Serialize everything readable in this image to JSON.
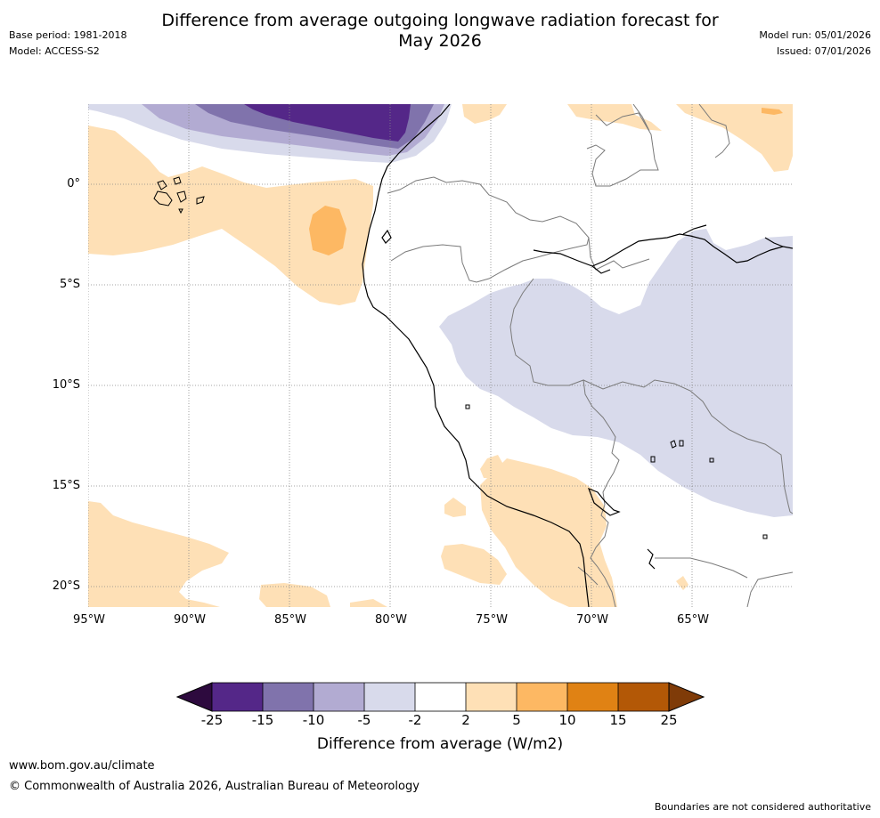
{
  "header": {
    "title_line1": "Difference from average outgoing longwave radiation forecast for",
    "title_line2": "May 2026",
    "base_period": "Base period: 1981-2018",
    "model": "Model: ACCESS-S2",
    "model_run": "Model run: 05/01/2026",
    "issued": "Issued: 07/01/2026"
  },
  "map": {
    "lat_labels": [
      "0°",
      "5°S",
      "10°S",
      "15°S",
      "20°S"
    ],
    "lon_labels": [
      "95°W",
      "90°W",
      "85°W",
      "80°W",
      "75°W",
      "70°W",
      "65°W"
    ]
  },
  "colorbar": {
    "ticks": [
      "-25",
      "-15",
      "-10",
      "-5",
      "-2",
      "2",
      "5",
      "10",
      "15",
      "25"
    ],
    "colors": {
      "below_min": "#2d0a3e",
      "c_m25_m15": "#542788",
      "c_m15_m10": "#8073ac",
      "c_m10_m5": "#b2abd2",
      "c_m5_m2": "#d8daeb",
      "c_m2_2": "#ffffff",
      "c_2_5": "#fee0b6",
      "c_5_10": "#fdb863",
      "c_10_15": "#e08214",
      "c_15_25": "#b35806",
      "above_max": "#7f3b08"
    },
    "title": "Difference from average (W/m2)"
  },
  "footer": {
    "website": "www.bom.gov.au/climate",
    "copyright": "© Commonwealth of Australia 2026, Australian Bureau of Meteorology",
    "disclaimer": "Boundaries are not considered authoritative"
  }
}
